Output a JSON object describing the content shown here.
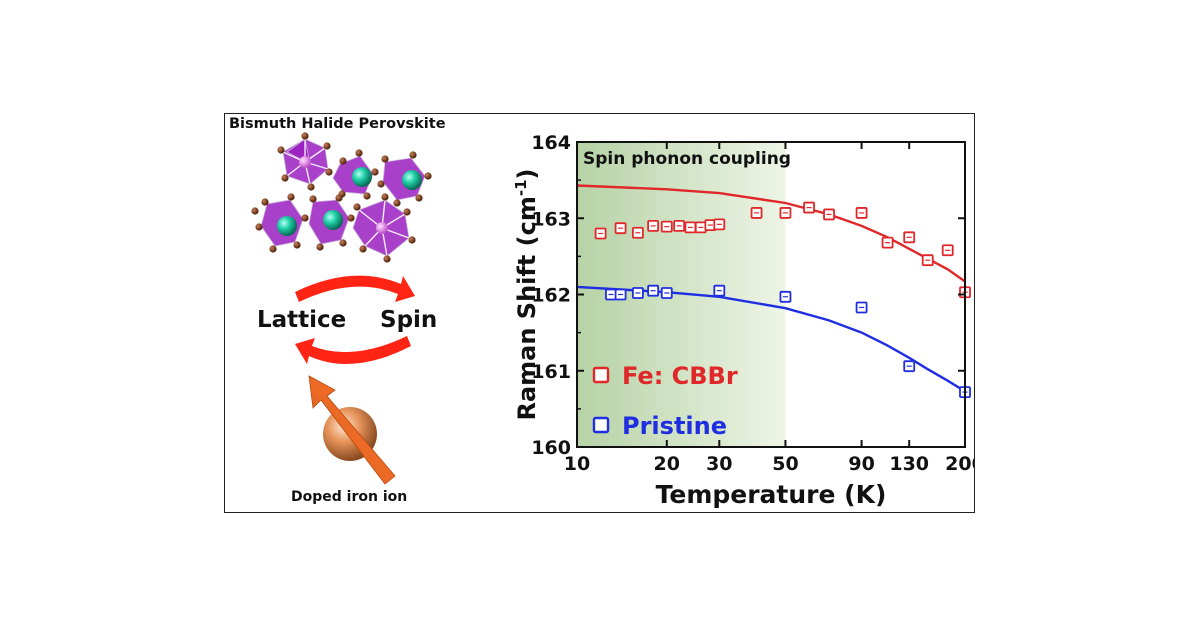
{
  "left_panel": {
    "title": "Bismuth Halide Perovskite",
    "lattice_label": "Lattice",
    "spin_label": "Spin",
    "ion_label": "Doped iron ion",
    "colors": {
      "octahedron": "#a020c8",
      "halide_atom": "#7a3b10",
      "cation_atom": "#17c6a0",
      "bismuth_atom": "#e080e0",
      "arrow": "#ff2a10",
      "iron_sphere": "#e08a4e"
    },
    "icons": [
      "crystal-structure-icon",
      "cycle-arrows-icon",
      "spin-arrow-icon"
    ]
  },
  "chart_data": {
    "type": "scatter",
    "xscale": "log",
    "xlim": [
      10,
      200
    ],
    "ylim": [
      160,
      164
    ],
    "xticks": [
      10,
      20,
      30,
      50,
      90,
      130,
      200
    ],
    "yticks": [
      160,
      161,
      162,
      163,
      164
    ],
    "xlabel": "Temperature (K)",
    "ylabel": "Raman Shift (cm-1)",
    "ylabel_main": "Raman Shift (cm",
    "ylabel_sup": "-1",
    "ylabel_close": ")",
    "annotation": "Spin phonon coupling",
    "shaded_region": [
      10,
      50
    ],
    "series": [
      {
        "name": "Fe: CBBr",
        "color": "#e0282a",
        "x": [
          12,
          14,
          16,
          18,
          20,
          22,
          24,
          26,
          28,
          30,
          40,
          50,
          60,
          70,
          90,
          110,
          130,
          150,
          175,
          200
        ],
        "y": [
          162.8,
          162.87,
          162.81,
          162.9,
          162.89,
          162.9,
          162.88,
          162.88,
          162.91,
          162.92,
          163.07,
          163.07,
          163.14,
          163.05,
          163.07,
          162.68,
          162.75,
          162.45,
          162.58,
          162.03
        ],
        "fit": {
          "x": [
            10,
            20,
            30,
            50,
            70,
            90,
            110,
            130,
            150,
            175,
            200
          ],
          "y": [
            163.43,
            163.38,
            163.33,
            163.2,
            163.05,
            162.9,
            162.75,
            162.6,
            162.47,
            162.33,
            162.17
          ]
        }
      },
      {
        "name": "Pristine",
        "color": "#1f2ee0",
        "x": [
          13,
          14,
          16,
          18,
          20,
          30,
          50,
          90,
          130,
          200
        ],
        "y": [
          162.0,
          162.0,
          162.02,
          162.05,
          162.02,
          162.05,
          161.97,
          161.83,
          161.06,
          160.72
        ],
        "fit": {
          "x": [
            10,
            20,
            30,
            50,
            70,
            90,
            110,
            130,
            150,
            175,
            200
          ],
          "y": [
            162.1,
            162.03,
            161.97,
            161.82,
            161.66,
            161.5,
            161.33,
            161.17,
            161.02,
            160.87,
            160.73
          ]
        }
      }
    ],
    "legend_position": "bottom-left",
    "grid": false
  }
}
